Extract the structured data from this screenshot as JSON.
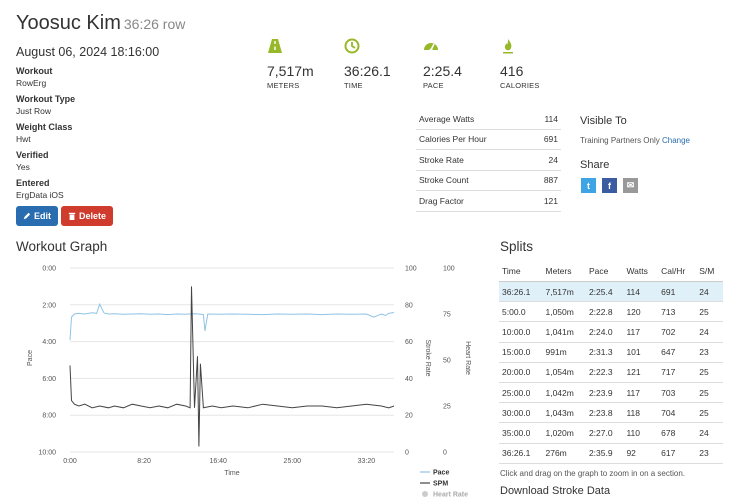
{
  "header": {
    "name": "Yoosuc Kim",
    "subtitle": "36:26 row"
  },
  "date": "August 06, 2024 18:16:00",
  "fields": [
    {
      "label": "Workout",
      "value": "RowErg"
    },
    {
      "label": "Workout Type",
      "value": "Just Row"
    },
    {
      "label": "Weight Class",
      "value": "Hwt"
    },
    {
      "label": "Verified",
      "value": "Yes"
    },
    {
      "label": "Entered",
      "value": "ErgData iOS"
    }
  ],
  "buttons": {
    "edit": "Edit",
    "delete": "Delete"
  },
  "stats": [
    {
      "icon": "road-icon",
      "value": "7,517m",
      "label": "METERS"
    },
    {
      "icon": "clock-icon",
      "value": "36:26.1",
      "label": "TIME"
    },
    {
      "icon": "speedometer-icon",
      "value": "2:25.4",
      "label": "PACE"
    },
    {
      "icon": "flame-icon",
      "value": "416",
      "label": "CALORIES"
    }
  ],
  "stat_rows": [
    {
      "label": "Average Watts",
      "value": "114"
    },
    {
      "label": "Calories Per Hour",
      "value": "691"
    },
    {
      "label": "Stroke Rate",
      "value": "24"
    },
    {
      "label": "Stroke Count",
      "value": "887"
    },
    {
      "label": "Drag Factor",
      "value": "121"
    }
  ],
  "visibility": {
    "heading": "Visible To",
    "value": "Training Partners Only",
    "change_link": "Change"
  },
  "share": {
    "heading": "Share",
    "twitter": "t",
    "facebook": "f",
    "email": "✉"
  },
  "graph": {
    "title": "Workout Graph",
    "zoom_note": "Click and drag on the graph to zoom in on a section."
  },
  "splits": {
    "title": "Splits",
    "columns": [
      "Time",
      "Meters",
      "Pace",
      "Watts",
      "Cal/Hr",
      "S/M"
    ],
    "rows": [
      [
        "36:26.1",
        "7,517m",
        "2:25.4",
        "114",
        "691",
        "24"
      ],
      [
        "5:00.0",
        "1,050m",
        "2:22.8",
        "120",
        "713",
        "25"
      ],
      [
        "10:00.0",
        "1,041m",
        "2:24.0",
        "117",
        "702",
        "24"
      ],
      [
        "15:00.0",
        "991m",
        "2:31.3",
        "101",
        "647",
        "23"
      ],
      [
        "20:00.0",
        "1,054m",
        "2:22.3",
        "121",
        "717",
        "25"
      ],
      [
        "25:00.0",
        "1,042m",
        "2:23.9",
        "117",
        "703",
        "25"
      ],
      [
        "30:00.0",
        "1,043m",
        "2:23.8",
        "118",
        "704",
        "25"
      ],
      [
        "35:00.0",
        "1,020m",
        "2:27.0",
        "110",
        "678",
        "24"
      ],
      [
        "36:26.1",
        "276m",
        "2:35.9",
        "92",
        "617",
        "23"
      ]
    ]
  },
  "download": "Download Stroke Data",
  "chart_data": {
    "type": "line",
    "xlabel": "Time",
    "x_ticks": [
      "0:00",
      "8:20",
      "16:40",
      "25:00",
      "33:20"
    ],
    "y_left_label": "Pace",
    "y_left_ticks": [
      "0:00",
      "2:00",
      "4:00",
      "6:00",
      "8:00",
      "10:00"
    ],
    "y_mid_label": "Stroke Rate",
    "y_mid_ticks": [
      "100",
      "80",
      "60",
      "40",
      "20",
      "0"
    ],
    "y_right_label": "Heart Rate",
    "y_right_ticks": [
      "100",
      "75",
      "50",
      "25",
      "0"
    ],
    "xlim": [
      0,
      2186
    ],
    "pace_ylim": [
      0,
      600
    ],
    "spm_ylim": [
      0,
      100
    ],
    "series": [
      {
        "name": "Pace",
        "color": "#8fc3e6",
        "x": [
          0,
          10,
          30,
          60,
          100,
          150,
          180,
          200,
          230,
          260,
          300,
          360,
          420,
          480,
          540,
          600,
          660,
          720,
          780,
          800,
          840,
          870,
          900,
          910,
          930,
          1000,
          1100,
          1200,
          1300,
          1400,
          1500,
          1600,
          1700,
          1800,
          1900,
          2000,
          2050,
          2100,
          2130,
          2150,
          2186
        ],
        "y": [
          235,
          160,
          150,
          148,
          150,
          146,
          148,
          118,
          147,
          150,
          149,
          151,
          150,
          149,
          151,
          150,
          152,
          150,
          151,
          150,
          149,
          150,
          152,
          205,
          150,
          151,
          150,
          151,
          152,
          150,
          151,
          150,
          152,
          150,
          151,
          150,
          160,
          150,
          155,
          148,
          145
        ]
      },
      {
        "name": "SPM",
        "color": "#444444",
        "x": [
          0,
          10,
          30,
          60,
          100,
          150,
          200,
          260,
          300,
          360,
          420,
          480,
          540,
          600,
          660,
          720,
          780,
          810,
          820,
          840,
          860,
          870,
          880,
          900,
          960,
          1020,
          1100,
          1200,
          1300,
          1400,
          1500,
          1600,
          1700,
          1800,
          1900,
          2000,
          2100,
          2150,
          2186
        ],
        "y": [
          47,
          28,
          26,
          25,
          26,
          24,
          25,
          24,
          25,
          24,
          26,
          25,
          24,
          25,
          24,
          26,
          25,
          24,
          90,
          24,
          52,
          3,
          48,
          24,
          25,
          24,
          25,
          24,
          26,
          25,
          24,
          25,
          25,
          24,
          25,
          26,
          25,
          24,
          25
        ]
      },
      {
        "name": "Heart Rate",
        "color": "#cccccc",
        "x": [],
        "y": []
      }
    ]
  }
}
